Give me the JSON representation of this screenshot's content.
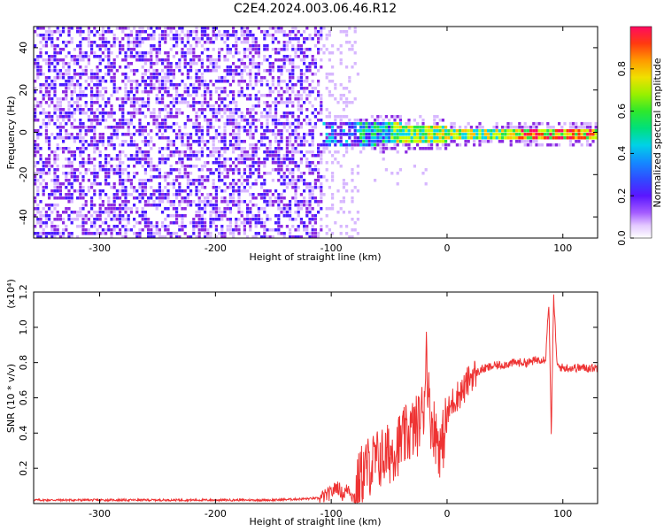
{
  "title": "C2E4.2024.003.06.46.R12",
  "chart_data": [
    {
      "type": "heatmap",
      "xlabel": "Height of straight line (km)",
      "ylabel": "Frequency (Hz)",
      "xlim": [
        -357,
        130
      ],
      "ylim": [
        -50,
        50
      ],
      "x_ticks": [
        -300,
        -200,
        -100,
        0,
        100
      ],
      "y_ticks": [
        -40,
        -20,
        0,
        20,
        40
      ],
      "colorbar": {
        "label": "Normalized spectral amplitude",
        "range": [
          0.0,
          1.0
        ],
        "ticks": [
          "0.0",
          "0.2",
          "0.4",
          "0.6",
          "0.8"
        ]
      },
      "colormap": [
        "#ffffff",
        "#d7b7ff",
        "#8b2be2",
        "#4b1bff",
        "#1f6bff",
        "#00d8e8",
        "#29e64a",
        "#c8ff00",
        "#ffc400",
        "#ff3a00",
        "#ff0a60"
      ]
    },
    {
      "type": "line",
      "xlabel": "Height of straight line (km)",
      "ylabel": "SNR (10 * v/v)",
      "y_multiplier": "(x10⁴)",
      "xlim": [
        -357,
        130
      ],
      "ylim": [
        0,
        1.2
      ],
      "x_ticks": [
        -300,
        -200,
        -100,
        0,
        100
      ],
      "y_ticks": [
        0.2,
        0.4,
        0.6,
        0.8,
        1.0,
        1.2
      ],
      "line_color": "#ee3333",
      "series": [
        {
          "x": [
            -357,
            -300,
            -250,
            -200,
            -150,
            -110,
            -100,
            -95,
            -90,
            -85,
            -80,
            -75,
            -70,
            -60,
            -50,
            -40,
            -30,
            -25,
            -20,
            -18,
            -15,
            -12,
            -10,
            -5,
            0,
            5,
            10,
            15,
            20,
            25,
            30,
            40,
            50,
            60,
            70,
            75,
            80,
            85,
            88,
            90,
            92,
            95,
            100,
            110,
            120,
            130
          ],
          "y": [
            0.02,
            0.02,
            0.02,
            0.02,
            0.02,
            0.03,
            0.06,
            0.1,
            0.05,
            0.09,
            0.02,
            0.15,
            0.2,
            0.25,
            0.28,
            0.35,
            0.42,
            0.45,
            0.55,
            0.9,
            0.5,
            0.45,
            0.4,
            0.3,
            0.5,
            0.58,
            0.62,
            0.65,
            0.72,
            0.74,
            0.76,
            0.78,
            0.79,
            0.8,
            0.8,
            0.81,
            0.82,
            0.82,
            1.15,
            0.37,
            1.18,
            0.78,
            0.77,
            0.77,
            0.77,
            0.77
          ]
        }
      ]
    }
  ]
}
